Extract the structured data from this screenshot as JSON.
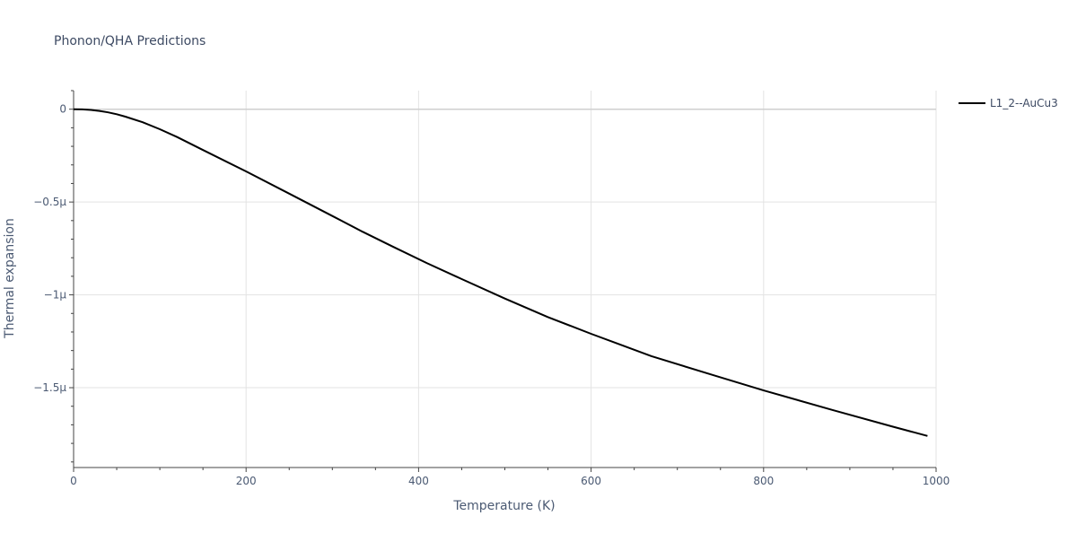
{
  "title": "Phonon/QHA Predictions",
  "chart_data": {
    "type": "line",
    "title": "Phonon/QHA Predictions",
    "xlabel": "Temperature (K)",
    "ylabel": "Thermal expansion",
    "xlim": [
      0,
      1000
    ],
    "ylim": [
      -1.93e-06,
      1e-07
    ],
    "x_ticks": [
      {
        "value": 0,
        "label": "0"
      },
      {
        "value": 200,
        "label": "200"
      },
      {
        "value": 400,
        "label": "400"
      },
      {
        "value": 600,
        "label": "600"
      },
      {
        "value": 800,
        "label": "800"
      },
      {
        "value": 1000,
        "label": "1000"
      }
    ],
    "y_ticks": [
      {
        "value": 0,
        "label": "0"
      },
      {
        "value": -5e-07,
        "label": "−0.5μ"
      },
      {
        "value": -1e-06,
        "label": "−1μ"
      },
      {
        "value": -1.5e-06,
        "label": "−1.5μ"
      }
    ],
    "grid": true,
    "legend_position": "top-right",
    "series": [
      {
        "name": "L1_2--AuCu3",
        "color": "#000000",
        "x": [
          0,
          10,
          20,
          30,
          40,
          50,
          60,
          80,
          100,
          120,
          150,
          200,
          250,
          300,
          335,
          370,
          410,
          450,
          500,
          550,
          600,
          670,
          740,
          800,
          880,
          950,
          990
        ],
        "y": [
          0,
          -1e-09,
          -4e-09,
          -9e-09,
          -1.7e-08,
          -2.7e-08,
          -4e-08,
          -7e-08,
          -1.08e-07,
          -1.5e-07,
          -2.2e-07,
          -3.35e-07,
          -4.55e-07,
          -5.75e-07,
          -6.6e-07,
          -7.4e-07,
          -8.3e-07,
          -9.15e-07,
          -1.02e-06,
          -1.12e-06,
          -1.21e-06,
          -1.33e-06,
          -1.43e-06,
          -1.515e-06,
          -1.62e-06,
          -1.71e-06,
          -1.76e-06
        ]
      }
    ]
  }
}
